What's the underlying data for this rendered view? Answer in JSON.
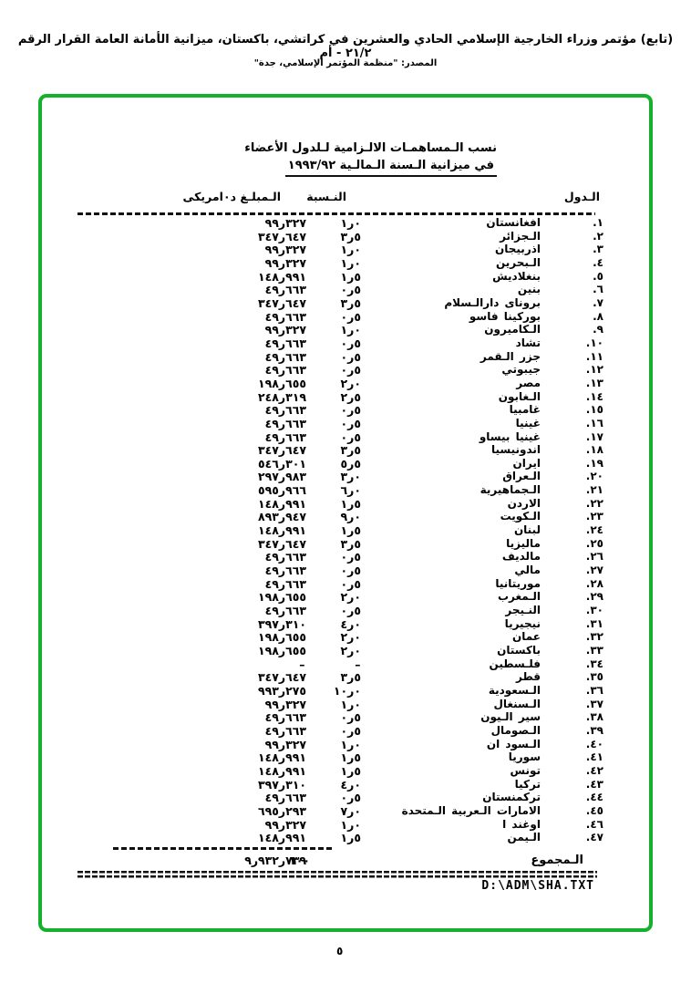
{
  "page": {
    "header_line1": "(تابع) مؤتمر وزراء الخارجية الإسلامي الحادي والعشرين في كراتشي، باكستان،  ميزانية الأمانة العامة القرار الرقم ٢١/٢ - أم",
    "header_line2": "المصدر:  \"منظمة المؤتمر الإسلامي، جدة\"",
    "page_number": "٥"
  },
  "document": {
    "title_line1": "نسب الـمساهمـات الالـزامية لـلدول الأعضاء",
    "title_line2": "في ميزانية الـسنة الـمالـية ١٩٩٣/٩٢",
    "columns": {
      "country": "الـدول",
      "percentage": "النـسبة",
      "amount": "الـمبلـغ د٠امريكى"
    },
    "rows": [
      {
        "num": ".١",
        "name": "افغانستان",
        "pct": "١ر٠",
        "amount": "٩٩ر٣٢٧"
      },
      {
        "num": ".٢",
        "name": "الـجزائر",
        "pct": "٣ر٥",
        "amount": "٣٤٧ر٦٤٧"
      },
      {
        "num": ".٣",
        "name": "اذربيجان",
        "pct": "١ر٠",
        "amount": "٩٩ر٣٢٧"
      },
      {
        "num": ".٤",
        "name": "الـبحرين",
        "pct": "١ر٠",
        "amount": "٩٩ر٣٢٧"
      },
      {
        "num": ".٥",
        "name": "بنغلاديش",
        "pct": "١ر٥",
        "amount": "١٤٨ر٩٩١"
      },
      {
        "num": ".٦",
        "name": "بنين",
        "pct": "٠ر٥",
        "amount": "٤٩ر٦٦٣"
      },
      {
        "num": ".٧",
        "name": "بروناى دارالـسلام",
        "pct": "٣ر٥",
        "amount": "٣٤٧ر٦٤٧"
      },
      {
        "num": ".٨",
        "name": "بوركينا فاسو",
        "pct": "٠ر٥",
        "amount": "٤٩ر٦٦٣"
      },
      {
        "num": ".٩",
        "name": "الـكاميرون",
        "pct": "١ر٠",
        "amount": "٩٩ر٣٢٧"
      },
      {
        "num": ".١٠",
        "name": "تشاد",
        "pct": "٠ر٥",
        "amount": "٤٩ر٦٦٣"
      },
      {
        "num": ".١١",
        "name": "جزر الـقمر",
        "pct": "٠ر٥",
        "amount": "٤٩ر٦٦٣"
      },
      {
        "num": ".١٢",
        "name": "جيبوتي",
        "pct": "٠ر٥",
        "amount": "٤٩ر٦٦٣"
      },
      {
        "num": ".١٣",
        "name": "مصر",
        "pct": "٢ر٠",
        "amount": "١٩٨ر٦٥٥"
      },
      {
        "num": ".١٤",
        "name": "الـغابون",
        "pct": "٢ر٥",
        "amount": "٢٤٨ر٣١٩"
      },
      {
        "num": ".١٥",
        "name": "غامبيا",
        "pct": "٠ر٥",
        "amount": "٤٩ر٦٦٣"
      },
      {
        "num": ".١٦",
        "name": "غينيا",
        "pct": "٠ر٥",
        "amount": "٤٩ر٦٦٣"
      },
      {
        "num": ".١٧",
        "name": "غينيا بيساو",
        "pct": "٠ر٥",
        "amount": "٤٩ر٦٦٣"
      },
      {
        "num": ".١٨",
        "name": "اندونيسيا",
        "pct": "٣ر٥",
        "amount": "٣٤٧ر٦٤٧"
      },
      {
        "num": ".١٩",
        "name": "ايران",
        "pct": "٥ر٥",
        "amount": "٥٤٦ر٣٠١"
      },
      {
        "num": ".٢٠",
        "name": "الـعراق",
        "pct": "٣ر٠",
        "amount": "٢٩٧ر٩٨٣"
      },
      {
        "num": ".٢١",
        "name": "الـجماهيرية",
        "pct": "٦ر٠",
        "amount": "٥٩٥ر٩٦٦"
      },
      {
        "num": ".٢٢",
        "name": "الاردن",
        "pct": "١ر٥",
        "amount": "١٤٨ر٩٩١"
      },
      {
        "num": ".٢٣",
        "name": "الـكويت",
        "pct": "٩ر٠",
        "amount": "٨٩٣ر٩٤٧"
      },
      {
        "num": ".٢٤",
        "name": "لبنان",
        "pct": "١ر٥",
        "amount": "١٤٨ر٩٩١"
      },
      {
        "num": ".٢٥",
        "name": "ماليزيا",
        "pct": "٣ر٥",
        "amount": "٣٤٧ر٦٤٧"
      },
      {
        "num": ".٢٦",
        "name": "مالديف",
        "pct": "٠ر٥",
        "amount": "٤٩ر٦٦٣"
      },
      {
        "num": ".٢٧",
        "name": "مالي",
        "pct": "٠ر٥",
        "amount": "٤٩ر٦٦٣"
      },
      {
        "num": ".٢٨",
        "name": "موريتانيا",
        "pct": "٠ر٥",
        "amount": "٤٩ر٦٦٣"
      },
      {
        "num": ".٢٩",
        "name": "الـمغرب",
        "pct": "٢ر٠",
        "amount": "١٩٨ر٦٥٥"
      },
      {
        "num": ".٣٠",
        "name": "النـيجر",
        "pct": "٠ر٥",
        "amount": "٤٩ر٦٦٣"
      },
      {
        "num": ".٣١",
        "name": "نيجيريا",
        "pct": "٤ر٠",
        "amount": "٣٩٧ر٣١٠"
      },
      {
        "num": ".٣٢",
        "name": "عمان",
        "pct": "٢ر٠",
        "amount": "١٩٨ر٦٥٥"
      },
      {
        "num": ".٣٣",
        "name": "باكستان",
        "pct": "٢ر٠",
        "amount": "١٩٨ر٦٥٥"
      },
      {
        "num": ".٣٤",
        "name": "فلـسطين",
        "pct": "–",
        "amount": "–"
      },
      {
        "num": ".٣٥",
        "name": "قطر",
        "pct": "٣ر٥",
        "amount": "٣٤٧ر٦٤٧"
      },
      {
        "num": ".٣٦",
        "name": "الـسعودية",
        "pct": "١٠ر٠",
        "amount": "٩٩٣ر٢٧٥"
      },
      {
        "num": ".٣٧",
        "name": "الـسنغال",
        "pct": "١ر٠",
        "amount": "٩٩ر٣٢٧"
      },
      {
        "num": ".٣٨",
        "name": "سير الـيون",
        "pct": "٠ر٥",
        "amount": "٤٩ر٦٦٣"
      },
      {
        "num": ".٣٩",
        "name": "الـصومال",
        "pct": "٠ر٥",
        "amount": "٤٩ر٦٦٣"
      },
      {
        "num": ".٤٠",
        "name": "الـسود ان",
        "pct": "١ر٠",
        "amount": "٩٩ر٣٢٧"
      },
      {
        "num": ".٤١",
        "name": "سوريا",
        "pct": "١ر٥",
        "amount": "١٤٨ر٩٩١"
      },
      {
        "num": ".٤٢",
        "name": "تونس",
        "pct": "١ر٥",
        "amount": "١٤٨ر٩٩١"
      },
      {
        "num": ".٤٣",
        "name": "تركيا",
        "pct": "٤ر٠",
        "amount": "٣٩٧ر٣١٠"
      },
      {
        "num": ".٤٤",
        "name": "تركمنستان",
        "pct": "٠ر٥",
        "amount": "٤٩ر٦٦٣"
      },
      {
        "num": ".٤٥",
        "name": "الامارات الـعربية الـمتحدة",
        "pct": "٧ر٠",
        "amount": "٦٩٥ر٢٩٣"
      },
      {
        "num": ".٤٦",
        "name": "اوغند ا",
        "pct": "١ر٠",
        "amount": "٩٩ر٣٢٧"
      },
      {
        "num": ".٤٧",
        "name": "الـيمن",
        "pct": "١ر٥",
        "amount": "١٤٨ر٩٩١"
      }
    ],
    "total": {
      "label": "الـمجموع",
      "pct": "١٠٠",
      "amount": "٩ر٩٣٢ر٧٣٩"
    },
    "footer_path": "D:\\ADM\\SHA.TXT"
  }
}
